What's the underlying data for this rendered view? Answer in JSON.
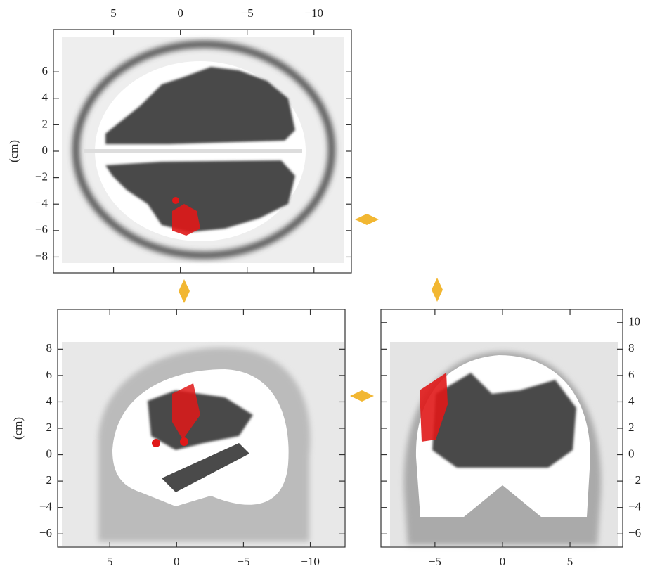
{
  "panels": [
    {
      "view": "axial",
      "xlim": [
        9.5,
        -12.8
      ],
      "ylim": [
        -9.2,
        9.2
      ],
      "xticks": [
        5,
        0,
        {
          "value": -5,
          "label": "−5"
        },
        {
          "value": -10,
          "label": "−10"
        }
      ],
      "yticks": [
        6,
        4,
        2,
        0,
        {
          "value": -2,
          "label": "−2"
        },
        {
          "value": -4,
          "label": "−4"
        },
        {
          "value": -6,
          "label": "−6"
        },
        {
          "value": -8,
          "label": "−8"
        }
      ],
      "xtick_side": "top",
      "ytick_side": "left",
      "ylabel": "(cm)"
    },
    {
      "view": "sagittal",
      "xlim": [
        8.9,
        -12.6
      ],
      "ylim": [
        -7.0,
        11.0
      ],
      "xticks": [
        5,
        0,
        {
          "value": -5,
          "label": "−5"
        },
        {
          "value": -10,
          "label": "−10"
        }
      ],
      "yticks": [
        8,
        6,
        4,
        2,
        0,
        {
          "value": -2,
          "label": "−2"
        },
        {
          "value": -4,
          "label": "−4"
        },
        {
          "value": -6,
          "label": "−6"
        }
      ],
      "xtick_side": "bottom",
      "ytick_side": "left",
      "ylabel": "(cm)"
    },
    {
      "view": "coronal",
      "xlim": [
        -9.0,
        8.9
      ],
      "ylim": [
        -7.0,
        11.0
      ],
      "xticks": [
        {
          "value": -5,
          "label": "−5"
        },
        0,
        5
      ],
      "yticks": [
        10,
        8,
        6,
        4,
        2,
        0,
        {
          "value": -2,
          "label": "−2"
        },
        {
          "value": -4,
          "label": "−4"
        },
        {
          "value": -6,
          "label": "−6"
        }
      ],
      "xtick_side": "bottom",
      "ytick_side": "right"
    }
  ]
}
